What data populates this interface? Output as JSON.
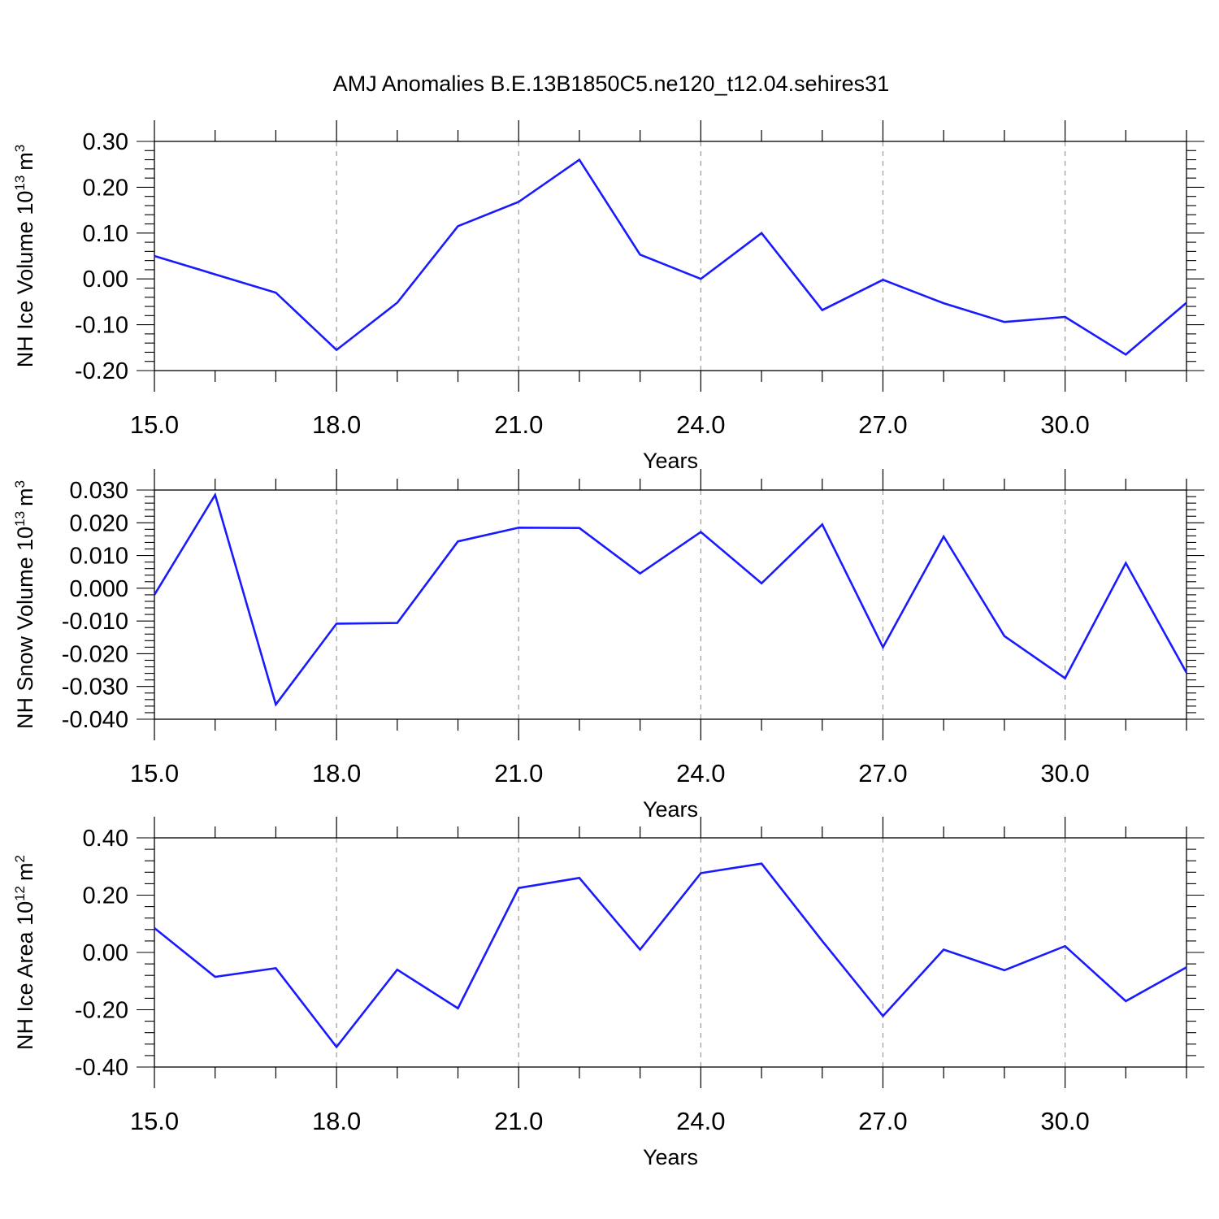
{
  "title": "AMJ Anomalies B.E.13B1850C5.ne120_t12.04.sehires31",
  "colors": {
    "line": "#1a1aff",
    "axis": "#000000",
    "grid": "#9a9a9a",
    "background": "#ffffff"
  },
  "chart_data": [
    {
      "type": "line",
      "ylabel_main": "NH Ice Volume 10",
      "ylabel_exp": "13",
      "ylabel_unit": "m",
      "ylabel_unit_exp": "3",
      "xlabel": "Years",
      "xlim": [
        15,
        32
      ],
      "ylim": [
        -0.2,
        0.3
      ],
      "xticks": [
        15,
        18,
        21,
        24,
        27,
        30
      ],
      "xtick_labels": [
        "15.0",
        "18.0",
        "21.0",
        "24.0",
        "27.0",
        "30.0"
      ],
      "yticks": [
        -0.2,
        -0.1,
        0,
        0.1,
        0.2,
        0.3
      ],
      "ytick_labels": [
        "-0.20",
        "-0.10",
        "0.00",
        "0.10",
        "0.20",
        "0.30"
      ],
      "grid": "vertical dashed at major x ticks",
      "series": [
        {
          "x": [
            15,
            16,
            17,
            18,
            19,
            20,
            21,
            22,
            23,
            24,
            25,
            26,
            27,
            28,
            29,
            30,
            31,
            32
          ],
          "values": [
            0.05,
            0.01,
            -0.03,
            -0.155,
            -0.052,
            0.115,
            0.168,
            0.26,
            0.053,
            0.0,
            0.1,
            -0.068,
            -0.002,
            -0.053,
            -0.094,
            -0.083,
            -0.165,
            -0.052
          ]
        }
      ]
    },
    {
      "type": "line",
      "ylabel_main": "NH Snow Volume 10",
      "ylabel_exp": "13",
      "ylabel_unit": "m",
      "ylabel_unit_exp": "3",
      "xlabel": "Years",
      "xlim": [
        15,
        32
      ],
      "ylim": [
        -0.04,
        0.03
      ],
      "xticks": [
        15,
        18,
        21,
        24,
        27,
        30
      ],
      "xtick_labels": [
        "15.0",
        "18.0",
        "21.0",
        "24.0",
        "27.0",
        "30.0"
      ],
      "yticks": [
        -0.04,
        -0.03,
        -0.02,
        -0.01,
        0,
        0.01,
        0.02,
        0.03
      ],
      "ytick_labels": [
        "-0.040",
        "-0.030",
        "-0.020",
        "-0.010",
        "0.000",
        "0.010",
        "0.020",
        "0.030"
      ],
      "grid": "vertical dashed at major x ticks",
      "series": [
        {
          "x": [
            15,
            16,
            17,
            18,
            19,
            20,
            21,
            22,
            23,
            24,
            25,
            26,
            27,
            28,
            29,
            30,
            31,
            32
          ],
          "values": [
            -0.002,
            0.0285,
            -0.0355,
            -0.0108,
            -0.0106,
            0.0143,
            0.0185,
            0.0184,
            0.0045,
            0.0172,
            0.0015,
            0.0195,
            -0.018,
            0.0158,
            -0.0146,
            -0.0275,
            0.0077,
            -0.0258
          ]
        }
      ]
    },
    {
      "type": "line",
      "ylabel_main": "NH Ice Area 10",
      "ylabel_exp": "12",
      "ylabel_unit": "m",
      "ylabel_unit_exp": "2",
      "xlabel": "Years",
      "xlim": [
        15,
        32
      ],
      "ylim": [
        -0.4,
        0.4
      ],
      "xticks": [
        15,
        18,
        21,
        24,
        27,
        30
      ],
      "xtick_labels": [
        "15.0",
        "18.0",
        "21.0",
        "24.0",
        "27.0",
        "30.0"
      ],
      "yticks": [
        -0.4,
        -0.2,
        0,
        0.2,
        0.4
      ],
      "ytick_labels": [
        "-0.40",
        "-0.20",
        "0.00",
        "0.20",
        "0.40"
      ],
      "grid": "vertical dashed at major x ticks",
      "series": [
        {
          "x": [
            15,
            16,
            17,
            18,
            19,
            20,
            21,
            22,
            23,
            24,
            25,
            26,
            27,
            28,
            29,
            30,
            31,
            32
          ],
          "values": [
            0.085,
            -0.085,
            -0.055,
            -0.33,
            -0.06,
            -0.195,
            0.225,
            0.26,
            0.01,
            0.277,
            0.31,
            0.04,
            -0.222,
            0.01,
            -0.062,
            0.022,
            -0.17,
            -0.052
          ]
        }
      ]
    }
  ]
}
